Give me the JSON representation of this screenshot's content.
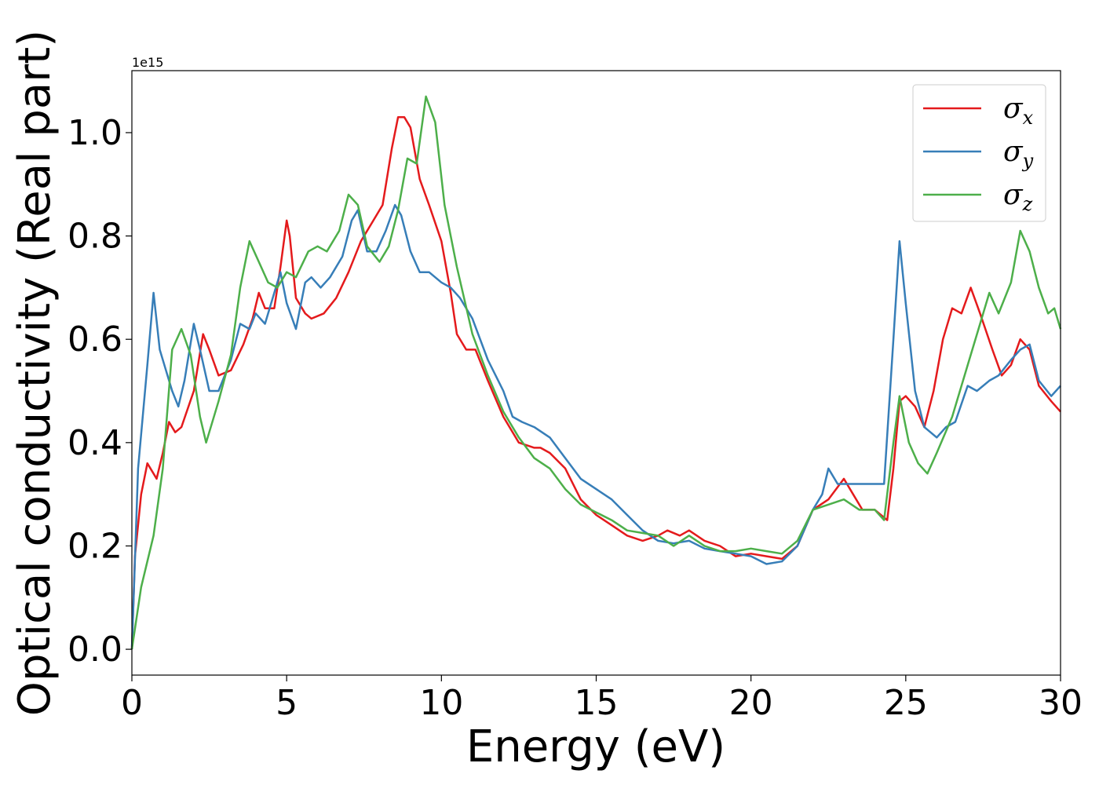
{
  "chart_data": {
    "type": "line",
    "xlabel": "Energy (eV)",
    "ylabel": "Optical conductivity (Real part)",
    "y_offset_label": "1e15",
    "xlim": [
      0,
      30
    ],
    "ylim": [
      -0.05,
      1.12
    ],
    "x_ticks": [
      0,
      5,
      10,
      15,
      20,
      25,
      30
    ],
    "x_tick_labels": [
      "0",
      "5",
      "10",
      "15",
      "20",
      "25",
      "30"
    ],
    "y_ticks": [
      0.0,
      0.2,
      0.4,
      0.6,
      0.8,
      1.0
    ],
    "y_tick_labels": [
      "0.0",
      "0.2",
      "0.4",
      "0.6",
      "0.8",
      "1.0"
    ],
    "grid": false,
    "legend_position": "top-right",
    "series": [
      {
        "name": "σ",
        "subscript": "x",
        "color": "#e41a1c",
        "points": [
          [
            0,
            0.0
          ],
          [
            0.1,
            0.18
          ],
          [
            0.3,
            0.3
          ],
          [
            0.5,
            0.36
          ],
          [
            0.7,
            0.34
          ],
          [
            0.8,
            0.33
          ],
          [
            1.0,
            0.38
          ],
          [
            1.2,
            0.44
          ],
          [
            1.4,
            0.42
          ],
          [
            1.6,
            0.43
          ],
          [
            2.0,
            0.5
          ],
          [
            2.3,
            0.61
          ],
          [
            2.5,
            0.58
          ],
          [
            2.8,
            0.53
          ],
          [
            3.2,
            0.54
          ],
          [
            3.6,
            0.59
          ],
          [
            3.9,
            0.64
          ],
          [
            4.1,
            0.69
          ],
          [
            4.3,
            0.66
          ],
          [
            4.6,
            0.66
          ],
          [
            4.8,
            0.74
          ],
          [
            5.0,
            0.83
          ],
          [
            5.1,
            0.8
          ],
          [
            5.3,
            0.68
          ],
          [
            5.6,
            0.65
          ],
          [
            5.8,
            0.64
          ],
          [
            6.2,
            0.65
          ],
          [
            6.6,
            0.68
          ],
          [
            7.0,
            0.73
          ],
          [
            7.4,
            0.79
          ],
          [
            7.8,
            0.83
          ],
          [
            8.1,
            0.86
          ],
          [
            8.4,
            0.97
          ],
          [
            8.6,
            1.03
          ],
          [
            8.8,
            1.03
          ],
          [
            9.0,
            1.01
          ],
          [
            9.3,
            0.91
          ],
          [
            9.6,
            0.86
          ],
          [
            10.0,
            0.79
          ],
          [
            10.3,
            0.69
          ],
          [
            10.5,
            0.61
          ],
          [
            10.8,
            0.58
          ],
          [
            11.1,
            0.58
          ],
          [
            11.5,
            0.52
          ],
          [
            12.0,
            0.45
          ],
          [
            12.5,
            0.4
          ],
          [
            13.0,
            0.39
          ],
          [
            13.2,
            0.39
          ],
          [
            13.5,
            0.38
          ],
          [
            14.0,
            0.35
          ],
          [
            14.5,
            0.29
          ],
          [
            15.0,
            0.26
          ],
          [
            15.5,
            0.24
          ],
          [
            16.0,
            0.22
          ],
          [
            16.5,
            0.21
          ],
          [
            17.0,
            0.22
          ],
          [
            17.3,
            0.23
          ],
          [
            17.7,
            0.22
          ],
          [
            18.0,
            0.23
          ],
          [
            18.5,
            0.21
          ],
          [
            19.0,
            0.2
          ],
          [
            19.5,
            0.18
          ],
          [
            20.0,
            0.185
          ],
          [
            20.5,
            0.18
          ],
          [
            21.0,
            0.175
          ],
          [
            21.5,
            0.2
          ],
          [
            22.0,
            0.27
          ],
          [
            22.5,
            0.29
          ],
          [
            23.0,
            0.33
          ],
          [
            23.3,
            0.3
          ],
          [
            23.6,
            0.27
          ],
          [
            24.0,
            0.27
          ],
          [
            24.4,
            0.25
          ],
          [
            24.6,
            0.35
          ],
          [
            24.8,
            0.48
          ],
          [
            25.0,
            0.49
          ],
          [
            25.3,
            0.47
          ],
          [
            25.6,
            0.43
          ],
          [
            25.9,
            0.5
          ],
          [
            26.2,
            0.6
          ],
          [
            26.5,
            0.66
          ],
          [
            26.8,
            0.65
          ],
          [
            27.1,
            0.7
          ],
          [
            27.4,
            0.65
          ],
          [
            27.8,
            0.58
          ],
          [
            28.1,
            0.53
          ],
          [
            28.4,
            0.55
          ],
          [
            28.7,
            0.6
          ],
          [
            29.0,
            0.58
          ],
          [
            29.3,
            0.51
          ],
          [
            29.7,
            0.48
          ],
          [
            30.0,
            0.46
          ]
        ]
      },
      {
        "name": "σ",
        "subscript": "y",
        "color": "#377eb8",
        "points": [
          [
            0,
            0.0
          ],
          [
            0.2,
            0.35
          ],
          [
            0.5,
            0.55
          ],
          [
            0.7,
            0.69
          ],
          [
            0.9,
            0.58
          ],
          [
            1.1,
            0.54
          ],
          [
            1.3,
            0.5
          ],
          [
            1.5,
            0.47
          ],
          [
            1.7,
            0.52
          ],
          [
            2.0,
            0.63
          ],
          [
            2.2,
            0.58
          ],
          [
            2.5,
            0.5
          ],
          [
            2.8,
            0.5
          ],
          [
            3.2,
            0.56
          ],
          [
            3.5,
            0.63
          ],
          [
            3.8,
            0.62
          ],
          [
            4.0,
            0.65
          ],
          [
            4.3,
            0.63
          ],
          [
            4.6,
            0.69
          ],
          [
            4.8,
            0.73
          ],
          [
            5.0,
            0.67
          ],
          [
            5.3,
            0.62
          ],
          [
            5.6,
            0.71
          ],
          [
            5.8,
            0.72
          ],
          [
            6.1,
            0.7
          ],
          [
            6.4,
            0.72
          ],
          [
            6.8,
            0.76
          ],
          [
            7.1,
            0.83
          ],
          [
            7.3,
            0.85
          ],
          [
            7.6,
            0.77
          ],
          [
            7.9,
            0.77
          ],
          [
            8.2,
            0.81
          ],
          [
            8.5,
            0.86
          ],
          [
            8.7,
            0.84
          ],
          [
            9.0,
            0.77
          ],
          [
            9.3,
            0.73
          ],
          [
            9.6,
            0.73
          ],
          [
            10.0,
            0.71
          ],
          [
            10.3,
            0.7
          ],
          [
            10.6,
            0.68
          ],
          [
            11.0,
            0.64
          ],
          [
            11.5,
            0.56
          ],
          [
            12.0,
            0.5
          ],
          [
            12.3,
            0.45
          ],
          [
            12.6,
            0.44
          ],
          [
            13.0,
            0.43
          ],
          [
            13.5,
            0.41
          ],
          [
            14.0,
            0.37
          ],
          [
            14.5,
            0.33
          ],
          [
            15.0,
            0.31
          ],
          [
            15.5,
            0.29
          ],
          [
            16.0,
            0.26
          ],
          [
            16.5,
            0.23
          ],
          [
            17.0,
            0.21
          ],
          [
            17.5,
            0.205
          ],
          [
            18.0,
            0.21
          ],
          [
            18.5,
            0.195
          ],
          [
            19.0,
            0.19
          ],
          [
            19.5,
            0.185
          ],
          [
            20.0,
            0.18
          ],
          [
            20.5,
            0.165
          ],
          [
            21.0,
            0.17
          ],
          [
            21.5,
            0.2
          ],
          [
            22.0,
            0.27
          ],
          [
            22.3,
            0.3
          ],
          [
            22.5,
            0.35
          ],
          [
            22.8,
            0.32
          ],
          [
            23.3,
            0.32
          ],
          [
            23.8,
            0.32
          ],
          [
            24.3,
            0.32
          ],
          [
            24.6,
            0.6
          ],
          [
            24.8,
            0.79
          ],
          [
            25.0,
            0.67
          ],
          [
            25.3,
            0.5
          ],
          [
            25.6,
            0.43
          ],
          [
            26.0,
            0.41
          ],
          [
            26.3,
            0.43
          ],
          [
            26.6,
            0.44
          ],
          [
            27.0,
            0.51
          ],
          [
            27.3,
            0.5
          ],
          [
            27.7,
            0.52
          ],
          [
            28.0,
            0.53
          ],
          [
            28.4,
            0.56
          ],
          [
            28.7,
            0.58
          ],
          [
            29.0,
            0.59
          ],
          [
            29.3,
            0.52
          ],
          [
            29.7,
            0.49
          ],
          [
            30.0,
            0.51
          ]
        ]
      },
      {
        "name": "σ",
        "subscript": "z",
        "color": "#4daf4a",
        "points": [
          [
            0,
            0.0
          ],
          [
            0.3,
            0.12
          ],
          [
            0.7,
            0.22
          ],
          [
            1.0,
            0.35
          ],
          [
            1.3,
            0.58
          ],
          [
            1.6,
            0.62
          ],
          [
            1.9,
            0.57
          ],
          [
            2.2,
            0.45
          ],
          [
            2.4,
            0.4
          ],
          [
            2.8,
            0.48
          ],
          [
            3.2,
            0.57
          ],
          [
            3.5,
            0.7
          ],
          [
            3.8,
            0.79
          ],
          [
            4.1,
            0.75
          ],
          [
            4.4,
            0.71
          ],
          [
            4.7,
            0.7
          ],
          [
            5.0,
            0.73
          ],
          [
            5.3,
            0.72
          ],
          [
            5.7,
            0.77
          ],
          [
            6.0,
            0.78
          ],
          [
            6.3,
            0.77
          ],
          [
            6.7,
            0.81
          ],
          [
            7.0,
            0.88
          ],
          [
            7.3,
            0.86
          ],
          [
            7.6,
            0.78
          ],
          [
            8.0,
            0.75
          ],
          [
            8.3,
            0.78
          ],
          [
            8.6,
            0.85
          ],
          [
            8.9,
            0.95
          ],
          [
            9.2,
            0.94
          ],
          [
            9.5,
            1.07
          ],
          [
            9.8,
            1.02
          ],
          [
            10.1,
            0.86
          ],
          [
            10.5,
            0.74
          ],
          [
            11.0,
            0.61
          ],
          [
            11.5,
            0.53
          ],
          [
            12.0,
            0.46
          ],
          [
            12.5,
            0.41
          ],
          [
            13.0,
            0.37
          ],
          [
            13.5,
            0.35
          ],
          [
            14.0,
            0.31
          ],
          [
            14.5,
            0.28
          ],
          [
            15.0,
            0.265
          ],
          [
            15.5,
            0.25
          ],
          [
            16.0,
            0.23
          ],
          [
            16.5,
            0.225
          ],
          [
            17.0,
            0.22
          ],
          [
            17.5,
            0.2
          ],
          [
            18.0,
            0.22
          ],
          [
            18.5,
            0.2
          ],
          [
            19.0,
            0.19
          ],
          [
            19.5,
            0.19
          ],
          [
            20.0,
            0.195
          ],
          [
            20.5,
            0.19
          ],
          [
            21.0,
            0.185
          ],
          [
            21.5,
            0.21
          ],
          [
            22.0,
            0.27
          ],
          [
            22.5,
            0.28
          ],
          [
            23.0,
            0.29
          ],
          [
            23.5,
            0.27
          ],
          [
            24.0,
            0.27
          ],
          [
            24.3,
            0.25
          ],
          [
            24.6,
            0.4
          ],
          [
            24.8,
            0.49
          ],
          [
            25.1,
            0.4
          ],
          [
            25.4,
            0.36
          ],
          [
            25.7,
            0.34
          ],
          [
            26.0,
            0.38
          ],
          [
            26.5,
            0.45
          ],
          [
            27.0,
            0.55
          ],
          [
            27.4,
            0.63
          ],
          [
            27.7,
            0.69
          ],
          [
            28.0,
            0.65
          ],
          [
            28.4,
            0.71
          ],
          [
            28.7,
            0.81
          ],
          [
            29.0,
            0.77
          ],
          [
            29.3,
            0.7
          ],
          [
            29.6,
            0.65
          ],
          [
            29.8,
            0.66
          ],
          [
            30.0,
            0.62
          ]
        ]
      }
    ]
  }
}
